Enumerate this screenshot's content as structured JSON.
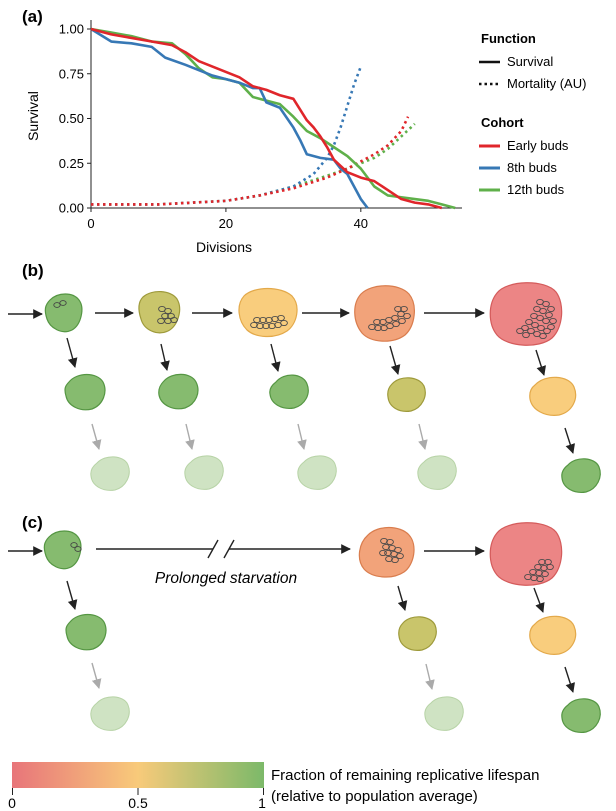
{
  "panels": {
    "a": "(a)",
    "b": "(b)",
    "c": "(c)"
  },
  "chart_data": {
    "type": "line",
    "title": "",
    "xlabel": "Divisions",
    "ylabel": "Survival",
    "xlim": [
      0,
      55
    ],
    "ylim": [
      0,
      1
    ],
    "xticks": [
      "0",
      "20",
      "40"
    ],
    "yticks": [
      "0.00",
      "0.25",
      "0.50",
      "0.75",
      "1.00"
    ],
    "grid": false,
    "legend_placement": "right",
    "legend": {
      "function_title": "Function",
      "functions": [
        {
          "label": "Survival",
          "style": "solid"
        },
        {
          "label": "Mortality (AU)",
          "style": "dotted"
        }
      ],
      "cohort_title": "Cohort"
    },
    "series": [
      {
        "name": "Early buds",
        "color": "#e0262b",
        "survival": [
          [
            0,
            1.0
          ],
          [
            3,
            0.97
          ],
          [
            6,
            0.95
          ],
          [
            9,
            0.93
          ],
          [
            12,
            0.91
          ],
          [
            14,
            0.87
          ],
          [
            16,
            0.82
          ],
          [
            18,
            0.79
          ],
          [
            20,
            0.76
          ],
          [
            22,
            0.73
          ],
          [
            24,
            0.68
          ],
          [
            26,
            0.66
          ],
          [
            28,
            0.63
          ],
          [
            30,
            0.61
          ],
          [
            31,
            0.55
          ],
          [
            32,
            0.49
          ],
          [
            33,
            0.45
          ],
          [
            34,
            0.4
          ],
          [
            35,
            0.34
          ],
          [
            36,
            0.27
          ],
          [
            38,
            0.2
          ],
          [
            40,
            0.17
          ],
          [
            42,
            0.15
          ],
          [
            44,
            0.1
          ],
          [
            46,
            0.05
          ],
          [
            48,
            0.03
          ],
          [
            50,
            0.02
          ],
          [
            52,
            0.0
          ]
        ],
        "mortality": [
          [
            0,
            0.02
          ],
          [
            10,
            0.02
          ],
          [
            20,
            0.04
          ],
          [
            25,
            0.07
          ],
          [
            30,
            0.11
          ],
          [
            35,
            0.17
          ],
          [
            38,
            0.22
          ],
          [
            40,
            0.26
          ],
          [
            42,
            0.3
          ],
          [
            44,
            0.35
          ],
          [
            46,
            0.43
          ],
          [
            47,
            0.51
          ]
        ]
      },
      {
        "name": "8th buds",
        "color": "#3778b5",
        "survival": [
          [
            0,
            1.0
          ],
          [
            3,
            0.93
          ],
          [
            6,
            0.92
          ],
          [
            9,
            0.9
          ],
          [
            11,
            0.84
          ],
          [
            14,
            0.8
          ],
          [
            16,
            0.77
          ],
          [
            18,
            0.74
          ],
          [
            20,
            0.72
          ],
          [
            22,
            0.7
          ],
          [
            24,
            0.67
          ],
          [
            25,
            0.67
          ],
          [
            26,
            0.59
          ],
          [
            28,
            0.56
          ],
          [
            30,
            0.45
          ],
          [
            31,
            0.38
          ],
          [
            32,
            0.3
          ],
          [
            34,
            0.28
          ],
          [
            36,
            0.27
          ],
          [
            37,
            0.22
          ],
          [
            38,
            0.19
          ],
          [
            39,
            0.12
          ],
          [
            40,
            0.05
          ],
          [
            41,
            0.0
          ]
        ],
        "mortality": [
          [
            0,
            0.02
          ],
          [
            10,
            0.02
          ],
          [
            20,
            0.04
          ],
          [
            25,
            0.07
          ],
          [
            30,
            0.12
          ],
          [
            33,
            0.19
          ],
          [
            35,
            0.28
          ],
          [
            36,
            0.35
          ],
          [
            37,
            0.45
          ],
          [
            38,
            0.57
          ],
          [
            39,
            0.69
          ],
          [
            40,
            0.79
          ]
        ]
      },
      {
        "name": "12th buds",
        "color": "#5fb04a",
        "survival": [
          [
            0,
            1.0
          ],
          [
            3,
            0.98
          ],
          [
            6,
            0.96
          ],
          [
            9,
            0.93
          ],
          [
            12,
            0.92
          ],
          [
            14,
            0.86
          ],
          [
            16,
            0.78
          ],
          [
            18,
            0.73
          ],
          [
            20,
            0.72
          ],
          [
            22,
            0.7
          ],
          [
            24,
            0.62
          ],
          [
            26,
            0.6
          ],
          [
            28,
            0.58
          ],
          [
            30,
            0.51
          ],
          [
            32,
            0.43
          ],
          [
            34,
            0.39
          ],
          [
            36,
            0.34
          ],
          [
            38,
            0.29
          ],
          [
            40,
            0.22
          ],
          [
            42,
            0.12
          ],
          [
            44,
            0.07
          ],
          [
            46,
            0.06
          ],
          [
            48,
            0.05
          ],
          [
            50,
            0.04
          ],
          [
            52,
            0.02
          ],
          [
            54,
            0.0
          ]
        ],
        "mortality": [
          [
            0,
            0.02
          ],
          [
            10,
            0.02
          ],
          [
            20,
            0.04
          ],
          [
            25,
            0.07
          ],
          [
            30,
            0.12
          ],
          [
            35,
            0.18
          ],
          [
            38,
            0.22
          ],
          [
            40,
            0.25
          ],
          [
            42,
            0.28
          ],
          [
            44,
            0.33
          ],
          [
            46,
            0.4
          ],
          [
            48,
            0.47
          ]
        ]
      }
    ]
  },
  "diagram": {
    "annotation": "Prolonged starvation",
    "colorbar": {
      "label_line1": "Fraction of remaining replicative lifespan",
      "label_line2": "(relative to population average)",
      "ticks": [
        "0",
        "0.5",
        "1"
      ],
      "colors": [
        "#e8757a",
        "#f8ca7a",
        "#7cb969"
      ]
    }
  }
}
